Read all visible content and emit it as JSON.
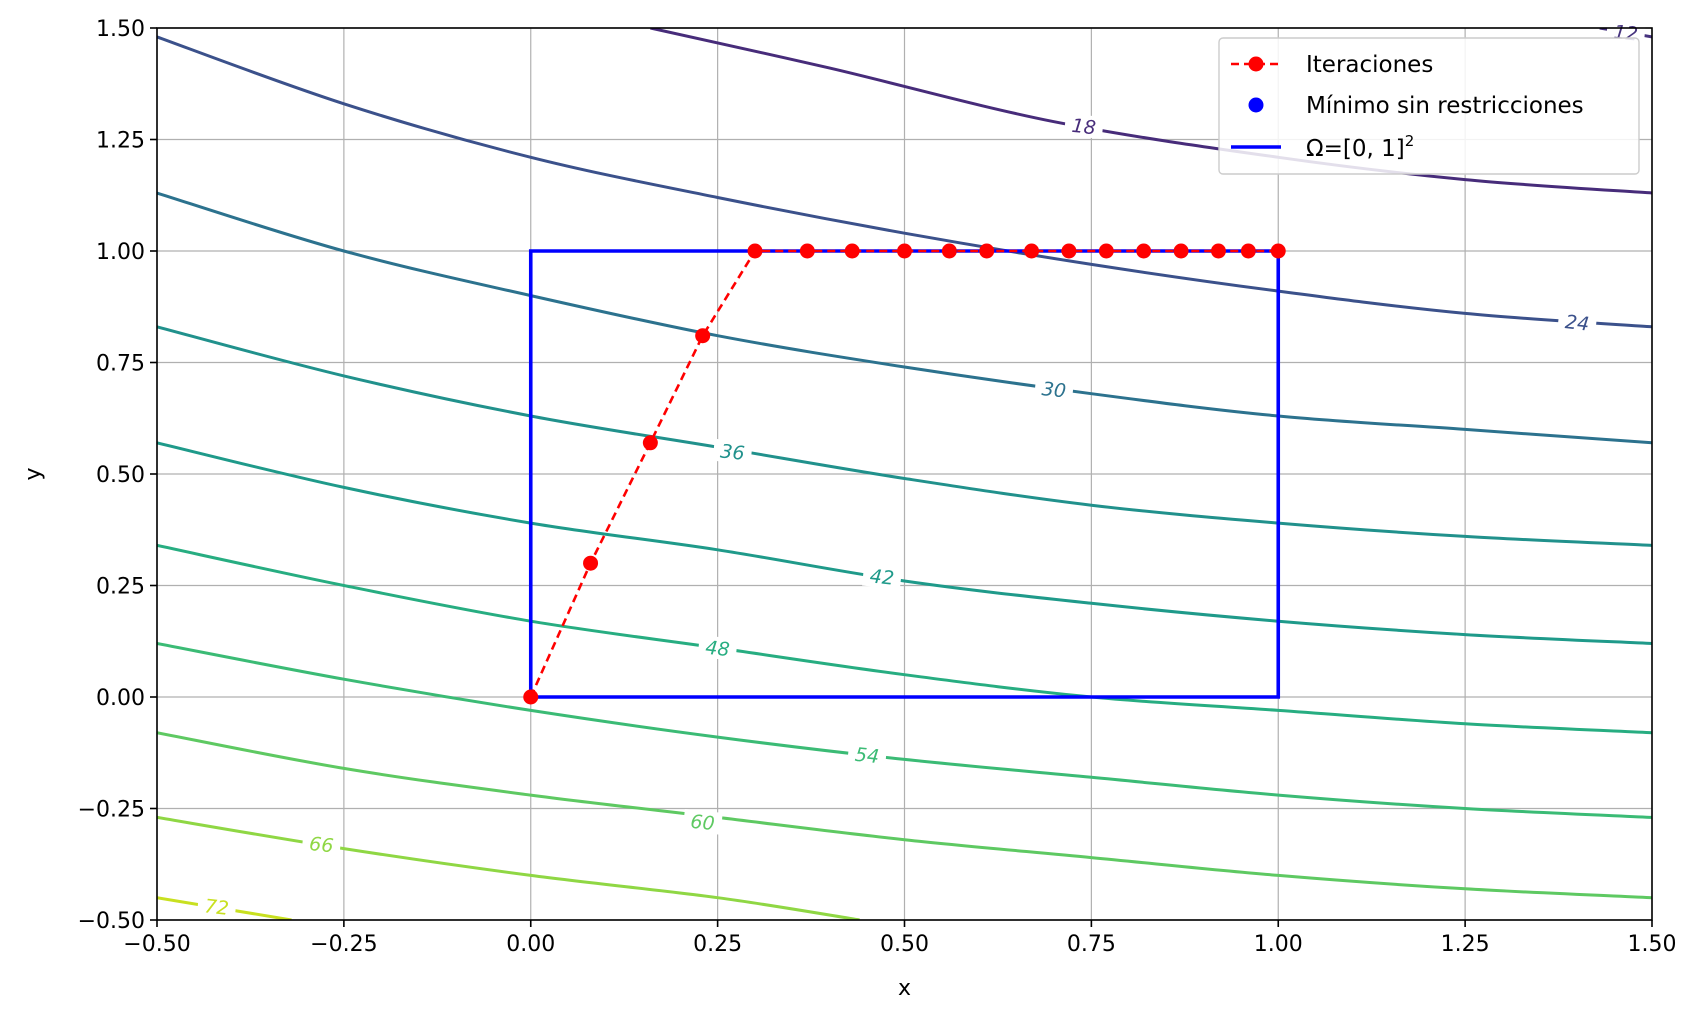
{
  "chart_data": {
    "type": "line",
    "title": "",
    "xlabel": "x",
    "ylabel": "y",
    "xlim": [
      -0.5,
      1.5
    ],
    "ylim": [
      -0.5,
      1.5
    ],
    "xticks": [
      -0.5,
      -0.25,
      0.0,
      0.25,
      0.5,
      0.75,
      1.0,
      1.25,
      1.5
    ],
    "yticks": [
      -0.5,
      -0.25,
      0.0,
      0.25,
      0.5,
      0.75,
      1.0,
      1.25,
      1.5
    ],
    "xtick_labels": [
      "−0.50",
      "−0.25",
      "0.00",
      "0.25",
      "0.50",
      "0.75",
      "1.00",
      "1.25",
      "1.50"
    ],
    "ytick_labels": [
      "−0.50",
      "−0.25",
      "0.00",
      "0.25",
      "0.50",
      "0.75",
      "1.00",
      "1.25",
      "1.50"
    ],
    "grid": true,
    "legend_position": "top-right",
    "contours": [
      {
        "level": 12,
        "label": "12",
        "color": "#46337e",
        "points": [
          [
            1.43,
            1.5
          ],
          [
            1.5,
            1.48
          ]
        ]
      },
      {
        "level": 18,
        "label": "18",
        "color": "#472c7a",
        "points": [
          [
            0.16,
            1.5
          ],
          [
            0.4,
            1.41
          ],
          [
            0.7,
            1.29
          ],
          [
            1.0,
            1.21
          ],
          [
            1.25,
            1.16
          ],
          [
            1.5,
            1.13
          ]
        ]
      },
      {
        "level": 24,
        "label": "24",
        "color": "#3b518b",
        "points": [
          [
            -0.5,
            1.48
          ],
          [
            -0.25,
            1.33
          ],
          [
            0.0,
            1.21
          ],
          [
            0.25,
            1.12
          ],
          [
            0.5,
            1.04
          ],
          [
            0.75,
            0.97
          ],
          [
            1.0,
            0.91
          ],
          [
            1.25,
            0.86
          ],
          [
            1.5,
            0.83
          ]
        ]
      },
      {
        "level": 30,
        "label": "30",
        "color": "#2c728e",
        "points": [
          [
            -0.5,
            1.13
          ],
          [
            -0.25,
            1.0
          ],
          [
            0.0,
            0.9
          ],
          [
            0.25,
            0.81
          ],
          [
            0.5,
            0.74
          ],
          [
            0.75,
            0.68
          ],
          [
            1.0,
            0.63
          ],
          [
            1.25,
            0.6
          ],
          [
            1.5,
            0.57
          ]
        ]
      },
      {
        "level": 36,
        "label": "36",
        "color": "#21918c",
        "points": [
          [
            -0.5,
            0.83
          ],
          [
            -0.25,
            0.72
          ],
          [
            0.0,
            0.63
          ],
          [
            0.25,
            0.56
          ],
          [
            0.5,
            0.49
          ],
          [
            0.75,
            0.43
          ],
          [
            1.0,
            0.39
          ],
          [
            1.25,
            0.36
          ],
          [
            1.5,
            0.34
          ]
        ]
      },
      {
        "level": 42,
        "label": "42",
        "color": "#1f9a8a",
        "points": [
          [
            -0.5,
            0.57
          ],
          [
            -0.25,
            0.47
          ],
          [
            0.0,
            0.39
          ],
          [
            0.25,
            0.33
          ],
          [
            0.5,
            0.26
          ],
          [
            0.75,
            0.21
          ],
          [
            1.0,
            0.17
          ],
          [
            1.25,
            0.14
          ],
          [
            1.5,
            0.12
          ]
        ]
      },
      {
        "level": 48,
        "label": "48",
        "color": "#27ad81",
        "points": [
          [
            -0.5,
            0.34
          ],
          [
            -0.25,
            0.25
          ],
          [
            0.0,
            0.17
          ],
          [
            0.25,
            0.11
          ],
          [
            0.5,
            0.05
          ],
          [
            0.75,
            0.0
          ],
          [
            1.0,
            -0.03
          ],
          [
            1.25,
            -0.06
          ],
          [
            1.5,
            -0.08
          ]
        ]
      },
      {
        "level": 54,
        "label": "54",
        "color": "#3bbb75",
        "points": [
          [
            -0.5,
            0.12
          ],
          [
            -0.25,
            0.04
          ],
          [
            0.0,
            -0.03
          ],
          [
            0.25,
            -0.09
          ],
          [
            0.5,
            -0.14
          ],
          [
            0.75,
            -0.18
          ],
          [
            1.0,
            -0.22
          ],
          [
            1.25,
            -0.25
          ],
          [
            1.5,
            -0.27
          ]
        ]
      },
      {
        "level": 60,
        "label": "60",
        "color": "#5ec962",
        "points": [
          [
            -0.5,
            -0.08
          ],
          [
            -0.25,
            -0.16
          ],
          [
            0.0,
            -0.22
          ],
          [
            0.25,
            -0.27
          ],
          [
            0.5,
            -0.32
          ],
          [
            0.75,
            -0.36
          ],
          [
            1.0,
            -0.4
          ],
          [
            1.25,
            -0.43
          ],
          [
            1.5,
            -0.45
          ]
        ]
      },
      {
        "level": 66,
        "label": "66",
        "color": "#8fd744",
        "points": [
          [
            -0.5,
            -0.27
          ],
          [
            -0.25,
            -0.34
          ],
          [
            0.0,
            -0.4
          ],
          [
            0.25,
            -0.45
          ],
          [
            0.44,
            -0.5
          ]
        ]
      },
      {
        "level": 72,
        "label": "72",
        "color": "#c8e020",
        "points": [
          [
            -0.5,
            -0.45
          ],
          [
            -0.32,
            -0.5
          ]
        ]
      }
    ],
    "contour_labels": [
      {
        "text": "12",
        "x": 1.465,
        "y": 1.49,
        "color": "#46337e"
      },
      {
        "text": "18",
        "x": 0.74,
        "y": 1.28,
        "color": "#472c7a"
      },
      {
        "text": "24",
        "x": 1.4,
        "y": 0.84,
        "color": "#3b518b"
      },
      {
        "text": "30",
        "x": 0.7,
        "y": 0.69,
        "color": "#2c728e"
      },
      {
        "text": "36",
        "x": 0.27,
        "y": 0.55,
        "color": "#21918c"
      },
      {
        "text": "42",
        "x": 0.47,
        "y": 0.27,
        "color": "#1f9a8a"
      },
      {
        "text": "48",
        "x": 0.25,
        "y": 0.11,
        "color": "#27ad81"
      },
      {
        "text": "54",
        "x": 0.45,
        "y": -0.13,
        "color": "#3bbb75"
      },
      {
        "text": "60",
        "x": 0.23,
        "y": -0.28,
        "color": "#5ec962"
      },
      {
        "text": "66",
        "x": -0.28,
        "y": -0.33,
        "color": "#8fd744"
      },
      {
        "text": "72",
        "x": -0.42,
        "y": -0.47,
        "color": "#c8e020"
      }
    ],
    "series": [
      {
        "name": "Iteraciones",
        "style": "dashed-markers",
        "color": "#ff0000",
        "x": [
          0.0,
          0.08,
          0.16,
          0.23,
          0.3,
          0.37,
          0.43,
          0.5,
          0.56,
          0.61,
          0.67,
          0.72,
          0.77,
          0.82,
          0.87,
          0.92,
          0.96,
          1.0
        ],
        "y": [
          0.0,
          0.3,
          0.57,
          0.81,
          1.0,
          1.0,
          1.0,
          1.0,
          1.0,
          1.0,
          1.0,
          1.0,
          1.0,
          1.0,
          1.0,
          1.0,
          1.0,
          1.0
        ]
      },
      {
        "name": "Mínimo sin restricciones",
        "style": "marker",
        "color": "#0000ff",
        "x": [],
        "y": []
      },
      {
        "name": "Ω=[0, 1]",
        "name_superscript": "2",
        "style": "solid",
        "color": "#0000ff",
        "x": [
          0,
          1,
          1,
          0,
          0
        ],
        "y": [
          0,
          0,
          1,
          1,
          0
        ]
      }
    ]
  }
}
